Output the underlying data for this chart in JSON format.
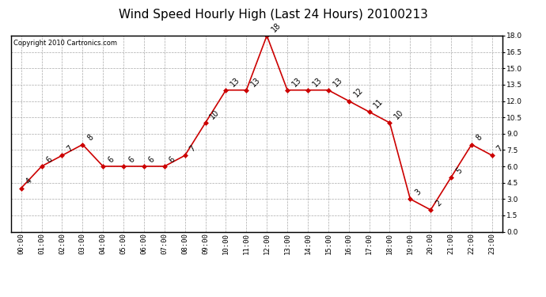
{
  "title": "Wind Speed Hourly High (Last 24 Hours) 20100213",
  "copyright": "Copyright 2010 Cartronics.com",
  "hours": [
    "00:00",
    "01:00",
    "02:00",
    "03:00",
    "04:00",
    "05:00",
    "06:00",
    "07:00",
    "08:00",
    "09:00",
    "10:00",
    "11:00",
    "12:00",
    "13:00",
    "14:00",
    "15:00",
    "16:00",
    "17:00",
    "18:00",
    "19:00",
    "20:00",
    "21:00",
    "22:00",
    "23:00"
  ],
  "values": [
    4,
    6,
    7,
    8,
    6,
    6,
    6,
    6,
    7,
    10,
    13,
    13,
    18,
    13,
    13,
    13,
    12,
    11,
    10,
    3,
    2,
    5,
    8,
    7
  ],
  "line_color": "#cc0000",
  "marker": "D",
  "marker_size": 3,
  "ylim": [
    0.0,
    18.0
  ],
  "yticks": [
    0.0,
    1.5,
    3.0,
    4.5,
    6.0,
    7.5,
    9.0,
    10.5,
    12.0,
    13.5,
    15.0,
    16.5,
    18.0
  ],
  "grid_color": "#aaaaaa",
  "grid_style": "--",
  "bg_color": "#ffffff",
  "title_fontsize": 11,
  "label_fontsize": 6.5,
  "annotation_fontsize": 7,
  "copyright_fontsize": 6
}
